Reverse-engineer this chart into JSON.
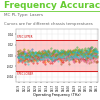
{
  "title": "Frequency Accuracy",
  "subtitle": "MC PL Type: Lasers",
  "description": "Curves are for different chassis temperatures",
  "xlabel": "Operating Frequency (THz)",
  "xmin": 191.75,
  "xmax": 196.15,
  "ymin": -0.05,
  "ymax": 0.05,
  "upper_limit": 0.03,
  "lower_limit": -0.03,
  "title_color": "#66cc33",
  "subtitle_color": "#666666",
  "background_color": "#ffffff",
  "band_color": "#ffcccc",
  "limit_line_color": "#cc0000",
  "limit_label_upper": "SPEC UPPER",
  "limit_label_lower": "SPEC LOWER",
  "xticks": [
    191.9,
    192.2,
    192.5,
    192.8,
    193.1,
    193.4,
    193.7,
    194.0,
    194.3,
    194.6,
    194.9,
    195.2,
    195.5,
    195.8,
    196.1
  ],
  "yticks": [
    -0.04,
    -0.02,
    0.0,
    0.02,
    0.04
  ],
  "n_channels": 80,
  "n_temps": 10,
  "seed": 7
}
